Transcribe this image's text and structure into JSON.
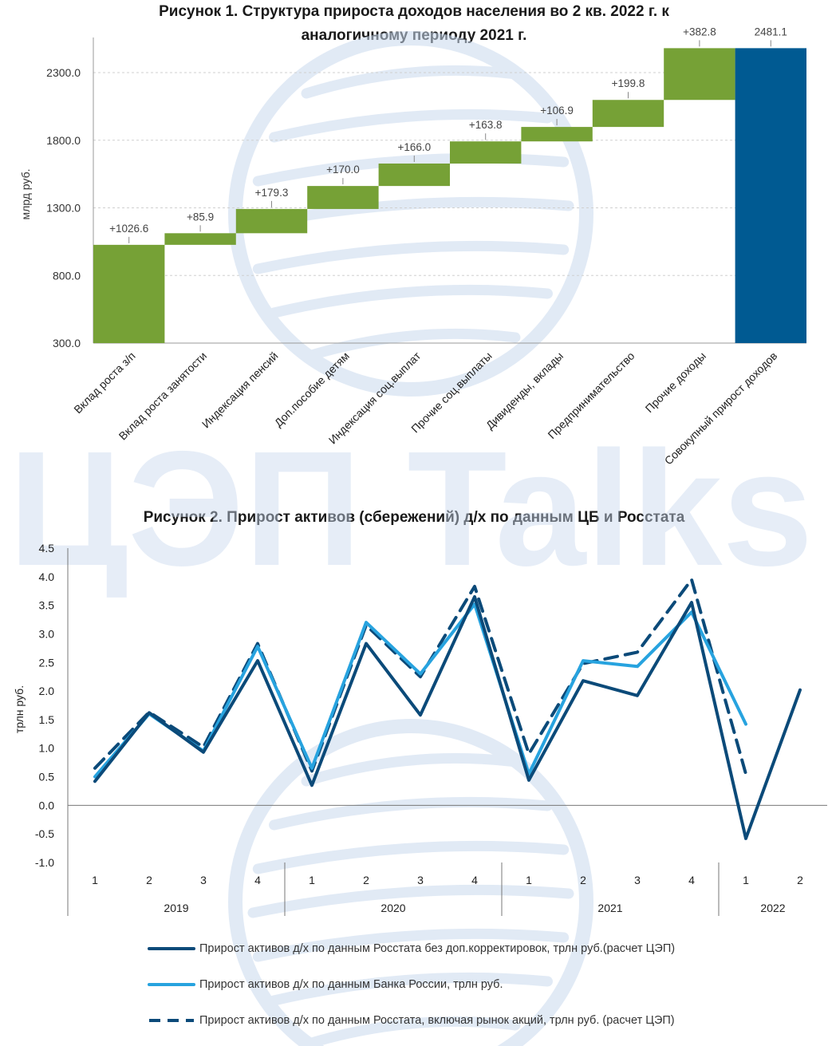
{
  "watermark": {
    "text": "ЦЭП Talks"
  },
  "colors": {
    "green": "#76a136",
    "green_dark": "#5f8a2a",
    "navy": "#005a92",
    "dark_blue": "#0b4a79",
    "light_blue": "#27a3df",
    "grid": "#d0d0d0",
    "watermark": "#c9d9ee"
  },
  "chart_data": [
    {
      "type": "bar",
      "subtype": "waterfall",
      "title_line1": "Рисунок 1. Структура прироста доходов населения во 2 кв. 2022 г. к",
      "title_line2": "аналогичному периоду 2021 г.",
      "ylabel": "млрд руб.",
      "ylim": [
        300,
        2560
      ],
      "yticks": [
        300,
        800,
        1300,
        1800,
        2300
      ],
      "ytick_labels": [
        "300.0",
        "800.0",
        "1300.0",
        "1800.0",
        "2300.0"
      ],
      "categories": [
        "Вклад роста з/п",
        "Вклад роста занятости",
        "Индексация пенсий",
        "Доп.пособие детям",
        "Индексация соц.выплат",
        "Прочие соц.выплаты",
        "Дивиденды, вклады",
        "Предпринимательство",
        "Прочие доходы",
        "Совокупный прирост доходов"
      ],
      "values": [
        1026.6,
        85.9,
        179.3,
        170.0,
        166.0,
        163.8,
        106.9,
        199.8,
        382.8,
        2481.1
      ],
      "labels": [
        "+1026.6",
        "+85.9",
        "+179.3",
        "+170.0",
        "+166.0",
        "+163.8",
        "+106.9",
        "+199.8",
        "+382.8",
        "2481.1"
      ],
      "total_index": 9
    },
    {
      "type": "line",
      "title": "Рисунок 2. Прирост активов (сбережений) д/х по данным ЦБ и Росстата",
      "ylabel": "трлн руб.",
      "ylim": [
        -1.0,
        4.5
      ],
      "yticks": [
        -1.0,
        -0.5,
        0.0,
        0.5,
        1.0,
        1.5,
        2.0,
        2.5,
        3.0,
        3.5,
        4.0,
        4.5
      ],
      "ytick_labels": [
        "-1.0",
        "-0.5",
        "0.0",
        "0.5",
        "1.0",
        "1.5",
        "2.0",
        "2.5",
        "3.0",
        "3.5",
        "4.0",
        "4.5"
      ],
      "quarters": [
        "1",
        "2",
        "3",
        "4",
        "1",
        "2",
        "3",
        "4",
        "1",
        "2",
        "3",
        "4",
        "1",
        "2"
      ],
      "years": [
        {
          "label": "2019",
          "span": 4
        },
        {
          "label": "2020",
          "span": 4
        },
        {
          "label": "2021",
          "span": 4
        },
        {
          "label": "2022",
          "span": 2
        }
      ],
      "series": [
        {
          "name": "Прирост активов д/х по данным Росстата без доп.корректировок, трлн руб.(расчет ЦЭП)",
          "style": "solid-dark",
          "values": [
            0.42,
            1.62,
            0.93,
            2.53,
            0.35,
            2.83,
            1.58,
            3.65,
            0.44,
            2.18,
            1.92,
            3.55,
            -0.58,
            2.02
          ]
        },
        {
          "name": "Прирост активов д/х по данным Банка России, трлн руб.",
          "style": "solid-light",
          "values": [
            0.5,
            1.6,
            0.95,
            2.78,
            0.65,
            3.2,
            2.3,
            3.52,
            0.55,
            2.53,
            2.43,
            3.38,
            1.42,
            null
          ]
        },
        {
          "name": "Прирост активов д/х по данным Росстата, включая рынок акций, трлн руб. (расчет ЦЭП)",
          "style": "dashed-dark",
          "values": [
            0.65,
            1.63,
            1.02,
            2.83,
            0.6,
            3.15,
            2.25,
            3.83,
            0.9,
            2.48,
            2.68,
            3.95,
            0.55,
            null
          ]
        }
      ]
    }
  ]
}
